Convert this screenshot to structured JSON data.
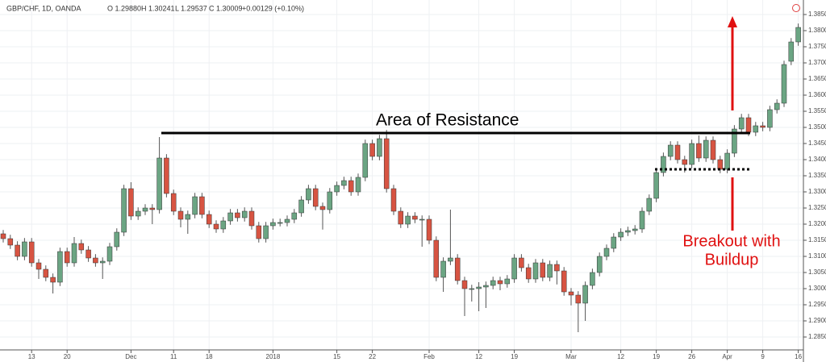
{
  "chart_data": {
    "type": "candlestick",
    "header": {
      "symbol": "GBP/CHF, 1D, OANDA",
      "open": "O 1.29880",
      "high": "H 1.30241",
      "low": "L 1.29537",
      "close": "C 1.30009",
      "change": "+0.00129 (+0.10%)"
    },
    "annotations": {
      "resistance": "Area of Resistance",
      "breakout_line1": "Breakout with",
      "breakout_line2": "Buildup"
    },
    "colors": {
      "up": "#6ba583",
      "down": "#d75442"
    },
    "grid": true,
    "ylim": [
      1.281,
      1.389
    ],
    "yticks": [
      {
        "value": 1.285,
        "label": "1.28500"
      },
      {
        "value": 1.29,
        "label": "1.29000"
      },
      {
        "value": 1.295,
        "label": "1.29500"
      },
      {
        "value": 1.3,
        "label": "1.30000"
      },
      {
        "value": 1.305,
        "label": "1.30500"
      },
      {
        "value": 1.31,
        "label": "1.31000"
      },
      {
        "value": 1.315,
        "label": "1.31500"
      },
      {
        "value": 1.32,
        "label": "1.32000"
      },
      {
        "value": 1.325,
        "label": "1.32500"
      },
      {
        "value": 1.33,
        "label": "1.33000"
      },
      {
        "value": 1.335,
        "label": "1.33500"
      },
      {
        "value": 1.34,
        "label": "1.34000"
      },
      {
        "value": 1.345,
        "label": "1.34500"
      },
      {
        "value": 1.35,
        "label": "1.35000"
      },
      {
        "value": 1.355,
        "label": "1.35500"
      },
      {
        "value": 1.36,
        "label": "1.36000"
      },
      {
        "value": 1.365,
        "label": "1.36500"
      },
      {
        "value": 1.37,
        "label": "1.37000"
      },
      {
        "value": 1.375,
        "label": "1.37500"
      },
      {
        "value": 1.38,
        "label": "1.38000"
      },
      {
        "value": 1.385,
        "label": "1.38500"
      }
    ],
    "xticks": [
      {
        "value": 4,
        "label": "13"
      },
      {
        "value": 9,
        "label": "20"
      },
      {
        "value": 18,
        "label": "Dec"
      },
      {
        "value": 24,
        "label": "11"
      },
      {
        "value": 29,
        "label": "18"
      },
      {
        "value": 38,
        "label": "2018"
      },
      {
        "value": 47,
        "label": "15"
      },
      {
        "value": 52,
        "label": "22"
      },
      {
        "value": 60,
        "label": "Feb"
      },
      {
        "value": 67,
        "label": "12"
      },
      {
        "value": 72,
        "label": "19"
      },
      {
        "value": 80,
        "label": "Mar"
      },
      {
        "value": 87,
        "label": "12"
      },
      {
        "value": 92,
        "label": "19"
      },
      {
        "value": 97,
        "label": "26"
      },
      {
        "value": 102,
        "label": "Apr"
      },
      {
        "value": 107,
        "label": "9"
      },
      {
        "value": 112,
        "label": "16"
      }
    ],
    "candles": [
      [
        1.317,
        1.3182,
        1.3143,
        1.3155
      ],
      [
        1.3155,
        1.3167,
        1.3123,
        1.3135
      ],
      [
        1.3135,
        1.3147,
        1.3088,
        1.31
      ],
      [
        1.31,
        1.3157,
        1.3088,
        1.3145
      ],
      [
        1.3145,
        1.3157,
        1.3068,
        1.308
      ],
      [
        1.308,
        1.3092,
        1.303,
        1.306
      ],
      [
        1.306,
        1.3072,
        1.3023,
        1.3035
      ],
      [
        1.3035,
        1.3047,
        1.2985,
        1.302
      ],
      [
        1.302,
        1.3127,
        1.3008,
        1.3115
      ],
      [
        1.3115,
        1.3127,
        1.3068,
        1.308
      ],
      [
        1.308,
        1.316,
        1.3068,
        1.314
      ],
      [
        1.314,
        1.3152,
        1.3108,
        1.312
      ],
      [
        1.312,
        1.3132,
        1.3083,
        1.3095
      ],
      [
        1.3095,
        1.3107,
        1.3068,
        1.308
      ],
      [
        1.308,
        1.3097,
        1.303,
        1.3085
      ],
      [
        1.3085,
        1.3142,
        1.3073,
        1.313
      ],
      [
        1.313,
        1.3187,
        1.3118,
        1.3175
      ],
      [
        1.3175,
        1.3322,
        1.3163,
        1.331
      ],
      [
        1.331,
        1.333,
        1.3213,
        1.3225
      ],
      [
        1.3225,
        1.3252,
        1.3213,
        1.324
      ],
      [
        1.324,
        1.3262,
        1.3228,
        1.325
      ],
      [
        1.325,
        1.3262,
        1.32,
        1.3245
      ],
      [
        1.3245,
        1.347,
        1.3233,
        1.3405
      ],
      [
        1.3405,
        1.3417,
        1.3283,
        1.3295
      ],
      [
        1.3295,
        1.3307,
        1.3228,
        1.324
      ],
      [
        1.324,
        1.3252,
        1.319,
        1.3215
      ],
      [
        1.3215,
        1.3242,
        1.317,
        1.323
      ],
      [
        1.323,
        1.3297,
        1.3218,
        1.3285
      ],
      [
        1.3285,
        1.3297,
        1.3218,
        1.323
      ],
      [
        1.323,
        1.3242,
        1.3188,
        1.32
      ],
      [
        1.32,
        1.3212,
        1.3173,
        1.3185
      ],
      [
        1.3185,
        1.3222,
        1.3173,
        1.321
      ],
      [
        1.321,
        1.3247,
        1.3198,
        1.3235
      ],
      [
        1.3235,
        1.3247,
        1.3208,
        1.322
      ],
      [
        1.322,
        1.3252,
        1.3208,
        1.324
      ],
      [
        1.324,
        1.3252,
        1.3183,
        1.3195
      ],
      [
        1.3195,
        1.3207,
        1.3143,
        1.3155
      ],
      [
        1.3155,
        1.3207,
        1.3143,
        1.3195
      ],
      [
        1.3195,
        1.3217,
        1.3183,
        1.3205
      ],
      [
        1.3205,
        1.3217,
        1.3193,
        1.3205
      ],
      [
        1.3205,
        1.3227,
        1.3193,
        1.3215
      ],
      [
        1.3215,
        1.3247,
        1.3203,
        1.3235
      ],
      [
        1.3235,
        1.3287,
        1.3223,
        1.3275
      ],
      [
        1.3275,
        1.3322,
        1.3263,
        1.331
      ],
      [
        1.331,
        1.3322,
        1.3243,
        1.3255
      ],
      [
        1.3255,
        1.3267,
        1.3183,
        1.3245
      ],
      [
        1.3245,
        1.3312,
        1.3233,
        1.33
      ],
      [
        1.33,
        1.3332,
        1.3288,
        1.332
      ],
      [
        1.332,
        1.3347,
        1.3308,
        1.3335
      ],
      [
        1.3335,
        1.3347,
        1.3288,
        1.33
      ],
      [
        1.33,
        1.3357,
        1.3288,
        1.3345
      ],
      [
        1.3345,
        1.3462,
        1.3333,
        1.345
      ],
      [
        1.345,
        1.3462,
        1.3398,
        1.341
      ],
      [
        1.341,
        1.3477,
        1.3398,
        1.3465
      ],
      [
        1.3465,
        1.3492,
        1.3298,
        1.331
      ],
      [
        1.331,
        1.3322,
        1.3228,
        1.324
      ],
      [
        1.324,
        1.3252,
        1.3188,
        1.32
      ],
      [
        1.32,
        1.3237,
        1.3188,
        1.3225
      ],
      [
        1.3225,
        1.3237,
        1.3203,
        1.3215
      ],
      [
        1.3215,
        1.3227,
        1.313,
        1.3215
      ],
      [
        1.3215,
        1.3227,
        1.3138,
        1.315
      ],
      [
        1.315,
        1.3162,
        1.3023,
        1.3035
      ],
      [
        1.3035,
        1.3097,
        1.299,
        1.3085
      ],
      [
        1.3085,
        1.3245,
        1.3073,
        1.3095
      ],
      [
        1.3095,
        1.3107,
        1.3013,
        1.3025
      ],
      [
        1.3025,
        1.3037,
        1.2915,
        1.3
      ],
      [
        1.3,
        1.3012,
        1.296,
        1.3
      ],
      [
        1.3,
        1.302,
        1.293,
        1.3005
      ],
      [
        1.3005,
        1.3022,
        1.294,
        1.301
      ],
      [
        1.301,
        1.3037,
        1.2998,
        1.3025
      ],
      [
        1.3025,
        1.3037,
        1.2995,
        1.3015
      ],
      [
        1.3015,
        1.3042,
        1.3003,
        1.303
      ],
      [
        1.303,
        1.3107,
        1.3018,
        1.3095
      ],
      [
        1.3095,
        1.3107,
        1.3053,
        1.3065
      ],
      [
        1.3065,
        1.3077,
        1.3018,
        1.303
      ],
      [
        1.303,
        1.3092,
        1.3018,
        1.308
      ],
      [
        1.308,
        1.3092,
        1.3023,
        1.3035
      ],
      [
        1.3035,
        1.3087,
        1.3023,
        1.3075
      ],
      [
        1.3075,
        1.3087,
        1.3013,
        1.3055
      ],
      [
        1.3055,
        1.3067,
        1.2978,
        1.299
      ],
      [
        1.299,
        1.3002,
        1.2948,
        1.298
      ],
      [
        1.298,
        1.2992,
        1.2865,
        1.2955
      ],
      [
        1.2955,
        1.3022,
        1.29,
        1.301
      ],
      [
        1.301,
        1.3062,
        1.2998,
        1.305
      ],
      [
        1.305,
        1.3112,
        1.3038,
        1.31
      ],
      [
        1.31,
        1.3137,
        1.3088,
        1.3125
      ],
      [
        1.3125,
        1.3172,
        1.3113,
        1.316
      ],
      [
        1.316,
        1.3187,
        1.3148,
        1.3175
      ],
      [
        1.3175,
        1.3192,
        1.3163,
        1.318
      ],
      [
        1.318,
        1.3197,
        1.3168,
        1.3185
      ],
      [
        1.3185,
        1.3252,
        1.3173,
        1.324
      ],
      [
        1.324,
        1.3292,
        1.3228,
        1.328
      ],
      [
        1.328,
        1.3372,
        1.3268,
        1.336
      ],
      [
        1.336,
        1.3422,
        1.3348,
        1.341
      ],
      [
        1.341,
        1.3457,
        1.3398,
        1.3445
      ],
      [
        1.3445,
        1.3457,
        1.3388,
        1.34
      ],
      [
        1.34,
        1.3412,
        1.336,
        1.3385
      ],
      [
        1.3385,
        1.3462,
        1.3373,
        1.345
      ],
      [
        1.345,
        1.3475,
        1.3393,
        1.3405
      ],
      [
        1.3405,
        1.3472,
        1.3393,
        1.346
      ],
      [
        1.346,
        1.3472,
        1.3388,
        1.34
      ],
      [
        1.34,
        1.3412,
        1.3358,
        1.337
      ],
      [
        1.337,
        1.3432,
        1.3358,
        1.342
      ],
      [
        1.342,
        1.3507,
        1.3408,
        1.3495
      ],
      [
        1.3495,
        1.3542,
        1.3483,
        1.353
      ],
      [
        1.353,
        1.3542,
        1.3473,
        1.3485
      ],
      [
        1.3485,
        1.3517,
        1.3473,
        1.3505
      ],
      [
        1.3505,
        1.3517,
        1.3488,
        1.35
      ],
      [
        1.35,
        1.3567,
        1.3488,
        1.3555
      ],
      [
        1.3555,
        1.3587,
        1.3543,
        1.3575
      ],
      [
        1.3575,
        1.3707,
        1.3563,
        1.3695
      ],
      [
        1.3705,
        1.3777,
        1.3693,
        1.3765
      ],
      [
        1.3765,
        1.3822,
        1.3753,
        1.381
      ]
    ]
  }
}
